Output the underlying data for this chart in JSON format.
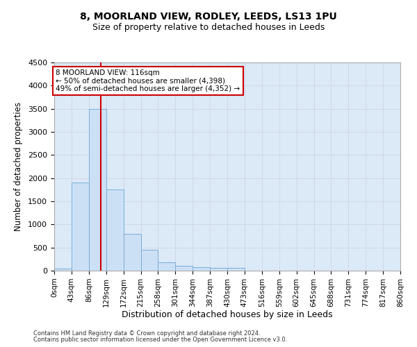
{
  "title1": "8, MOORLAND VIEW, RODLEY, LEEDS, LS13 1PU",
  "title2": "Size of property relative to detached houses in Leeds",
  "xlabel": "Distribution of detached houses by size in Leeds",
  "ylabel": "Number of detached properties",
  "footer1": "Contains HM Land Registry data © Crown copyright and database right 2024.",
  "footer2": "Contains public sector information licensed under the Open Government Licence v3.0.",
  "bin_edges": [
    0,
    43,
    86,
    129,
    172,
    215,
    258,
    301,
    344,
    387,
    430,
    473,
    516,
    559,
    602,
    645,
    688,
    731,
    774,
    817,
    860
  ],
  "bar_heights": [
    50,
    1900,
    3500,
    1750,
    800,
    450,
    175,
    100,
    75,
    60,
    55,
    5,
    3,
    2,
    1,
    1,
    1,
    0,
    0,
    0
  ],
  "bar_facecolor": "#cce0f5",
  "bar_edgecolor": "#7aaed6",
  "grid_color": "#d0d8e8",
  "vline_x": 116,
  "vline_color": "#cc0000",
  "annotation_box_color": "#cc0000",
  "annotation_text1": "8 MOORLAND VIEW: 116sqm",
  "annotation_text2": "← 50% of detached houses are smaller (4,398)",
  "annotation_text3": "49% of semi-detached houses are larger (4,352) →",
  "ylim": [
    0,
    4500
  ],
  "yticks": [
    0,
    500,
    1000,
    1500,
    2000,
    2500,
    3000,
    3500,
    4000,
    4500
  ],
  "bg_color": "#dce9f7",
  "annotation_fontsize": 7.5,
  "title1_fontsize": 10,
  "title2_fontsize": 9
}
